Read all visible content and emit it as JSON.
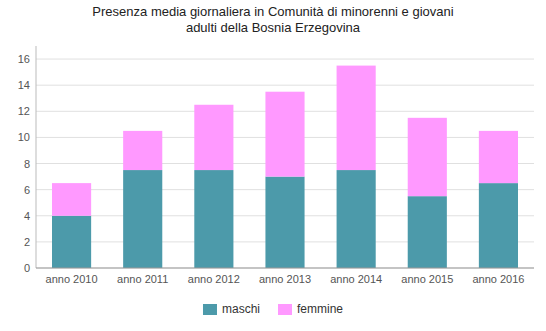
{
  "chart_data": {
    "type": "bar",
    "title": "Presenza media giornaliera in Comunità di minorenni e giovani\nadulti della Bosnia Erzegovina",
    "categories": [
      "anno 2010",
      "anno 2011",
      "anno 2012",
      "anno 2013",
      "anno 2014",
      "anno 2015",
      "anno 2016"
    ],
    "series": [
      {
        "name": "maschi",
        "color": "#4c9aaa",
        "values": [
          4,
          7.5,
          7.5,
          7,
          7.5,
          5.5,
          6.5
        ]
      },
      {
        "name": "femmine",
        "color": "#ff99ff",
        "values": [
          2.5,
          3,
          5,
          6.5,
          8,
          6,
          4
        ]
      }
    ],
    "stacked": true,
    "ylim": [
      0,
      17
    ],
    "yticks": [
      0,
      2,
      4,
      6,
      8,
      10,
      12,
      14,
      16
    ],
    "grid": true,
    "legend": "bottom"
  }
}
